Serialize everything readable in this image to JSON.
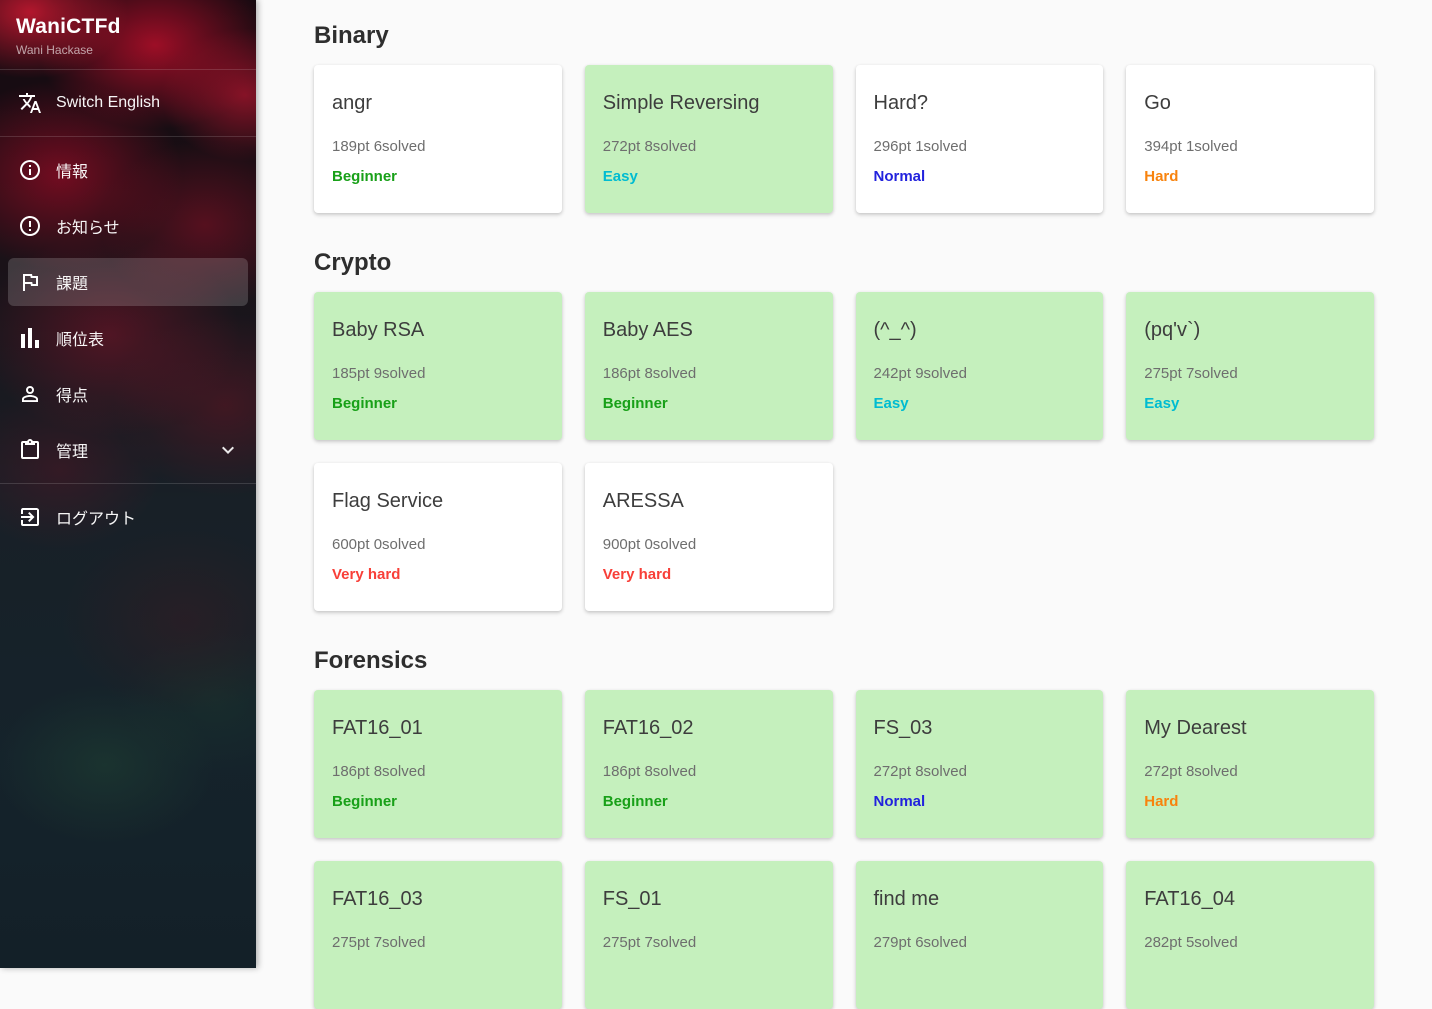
{
  "sidebar": {
    "title": "WaniCTFd",
    "subtitle": "Wani Hackase",
    "language_switch": {
      "label": "Switch English",
      "icon": "translate-icon"
    },
    "items": [
      {
        "label": "情報",
        "icon": "info-icon",
        "active": false,
        "expandable": false
      },
      {
        "label": "お知らせ",
        "icon": "alert-icon",
        "active": false,
        "expandable": false
      },
      {
        "label": "課題",
        "icon": "flag-icon",
        "active": true,
        "expandable": false
      },
      {
        "label": "順位表",
        "icon": "bar-chart-icon",
        "active": false,
        "expandable": false
      },
      {
        "label": "得点",
        "icon": "person-icon",
        "active": false,
        "expandable": false
      },
      {
        "label": "管理",
        "icon": "clipboard-icon",
        "active": false,
        "expandable": true
      }
    ],
    "logout": {
      "label": "ログアウト",
      "icon": "logout-icon"
    }
  },
  "sections": [
    {
      "title": "Binary",
      "cards": [
        {
          "title": "angr",
          "points": "189pt 6solved",
          "difficulty": "Beginner",
          "solved": false
        },
        {
          "title": "Simple Reversing",
          "points": "272pt 8solved",
          "difficulty": "Easy",
          "solved": true
        },
        {
          "title": "Hard?",
          "points": "296pt 1solved",
          "difficulty": "Normal",
          "solved": false
        },
        {
          "title": "Go",
          "points": "394pt 1solved",
          "difficulty": "Hard",
          "solved": false
        }
      ]
    },
    {
      "title": "Crypto",
      "cards": [
        {
          "title": "Baby RSA",
          "points": "185pt 9solved",
          "difficulty": "Beginner",
          "solved": true
        },
        {
          "title": "Baby AES",
          "points": "186pt 8solved",
          "difficulty": "Beginner",
          "solved": true
        },
        {
          "title": "(^_^)",
          "points": "242pt 9solved",
          "difficulty": "Easy",
          "solved": true
        },
        {
          "title": "(pq'v`)",
          "points": "275pt 7solved",
          "difficulty": "Easy",
          "solved": true
        },
        {
          "title": "Flag Service",
          "points": "600pt 0solved",
          "difficulty": "Very hard",
          "solved": false
        },
        {
          "title": "ARESSA",
          "points": "900pt 0solved",
          "difficulty": "Very hard",
          "solved": false
        }
      ]
    },
    {
      "title": "Forensics",
      "cards": [
        {
          "title": "FAT16_01",
          "points": "186pt 8solved",
          "difficulty": "Beginner",
          "solved": true
        },
        {
          "title": "FAT16_02",
          "points": "186pt 8solved",
          "difficulty": "Beginner",
          "solved": true
        },
        {
          "title": "FS_03",
          "points": "272pt 8solved",
          "difficulty": "Normal",
          "solved": true
        },
        {
          "title": "My Dearest",
          "points": "272pt 8solved",
          "difficulty": "Hard",
          "solved": true
        },
        {
          "title": "FAT16_03",
          "points": "275pt 7solved",
          "difficulty": "",
          "solved": true
        },
        {
          "title": "FS_01",
          "points": "275pt 7solved",
          "difficulty": "",
          "solved": true
        },
        {
          "title": "find me",
          "points": "279pt 6solved",
          "difficulty": "",
          "solved": true
        },
        {
          "title": "FAT16_04",
          "points": "282pt 5solved",
          "difficulty": "",
          "solved": true
        }
      ]
    }
  ],
  "colors": {
    "difficulty": {
      "Beginner": "#18a018",
      "Easy": "#00bcd1",
      "Normal": "#2222dd",
      "Hard": "#f8830d",
      "Very hard": "#f83f38"
    },
    "solved_card_background": "#c5f0bd",
    "unsolved_card_background": "#ffffff"
  }
}
